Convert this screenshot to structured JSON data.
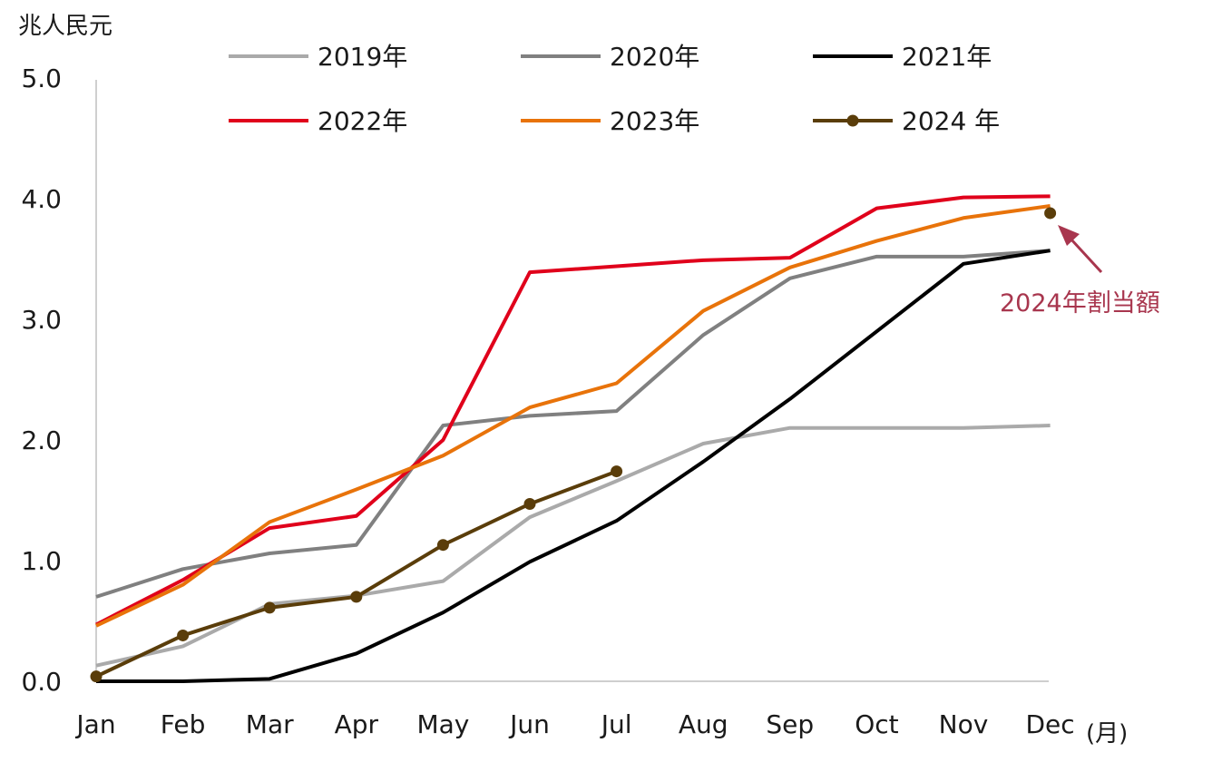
{
  "chart_data": {
    "type": "line",
    "title": "",
    "ylabel": "兆人民元",
    "xlabel": "(月)",
    "ylim": [
      0,
      5
    ],
    "yticks": [
      "0.0",
      "1.0",
      "2.0",
      "3.0",
      "4.0",
      "5.0"
    ],
    "ytick_values": [
      0,
      1,
      2,
      3,
      4,
      5
    ],
    "categories": [
      "Jan",
      "Feb",
      "Mar",
      "Apr",
      "May",
      "Jun",
      "Jul",
      "Aug",
      "Sep",
      "Oct",
      "Nov",
      "Dec"
    ],
    "grid": false,
    "legend_position": "top",
    "series": [
      {
        "name": "2019年",
        "color": "#aaaaaa",
        "marker": false,
        "values": [
          0.13,
          0.29,
          0.64,
          0.71,
          0.83,
          1.36,
          1.66,
          1.97,
          2.1,
          2.1,
          2.1,
          2.12
        ]
      },
      {
        "name": "2020年",
        "color": "#808080",
        "marker": false,
        "values": [
          0.7,
          0.93,
          1.06,
          1.13,
          2.12,
          2.2,
          2.24,
          2.87,
          3.34,
          3.52,
          3.52,
          3.57
        ]
      },
      {
        "name": "2021年",
        "color": "#000000",
        "marker": false,
        "values": [
          0.0,
          0.0,
          0.02,
          0.23,
          0.57,
          0.99,
          1.33,
          1.82,
          2.34,
          2.9,
          3.46,
          3.57
        ]
      },
      {
        "name": "2022年",
        "color": "#e0001b",
        "marker": false,
        "values": [
          0.47,
          0.84,
          1.27,
          1.37,
          2.0,
          3.39,
          3.44,
          3.49,
          3.51,
          3.92,
          4.01,
          4.02
        ]
      },
      {
        "name": "2023年",
        "color": "#e8730a",
        "marker": false,
        "values": [
          0.46,
          0.8,
          1.32,
          1.59,
          1.87,
          2.27,
          2.47,
          3.07,
          3.43,
          3.65,
          3.84,
          3.94
        ]
      },
      {
        "name": "2024 年",
        "color": "#5a3d0a",
        "marker": true,
        "values": [
          0.04,
          0.38,
          0.61,
          0.7,
          1.13,
          1.47,
          1.74,
          null,
          null,
          null,
          null,
          null
        ]
      }
    ],
    "extra_points": [
      {
        "label": "2024年割当額",
        "category": "Dec",
        "value": 3.88,
        "color": "#5a3d0a"
      }
    ],
    "annotation": {
      "text": "2024年割当額",
      "color": "#a8364e"
    }
  }
}
